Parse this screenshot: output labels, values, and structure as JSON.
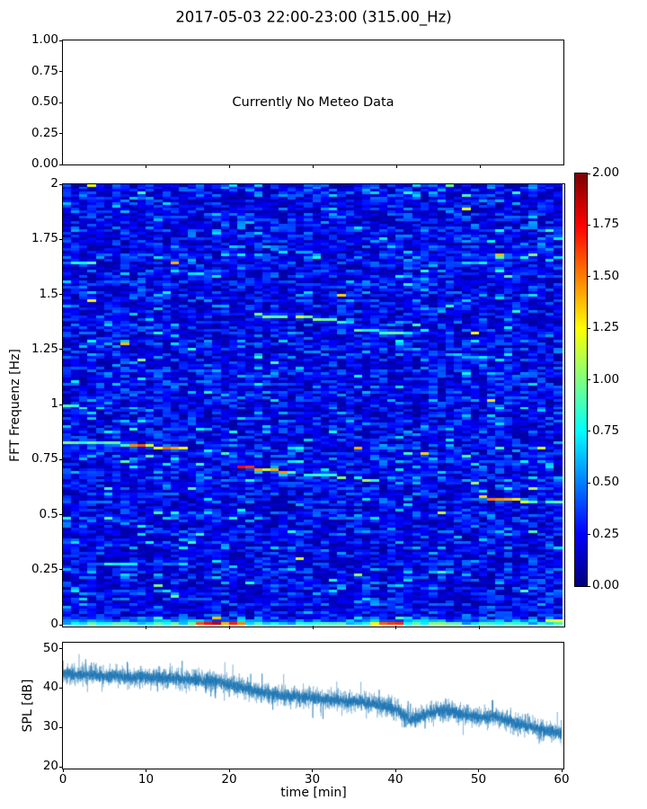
{
  "figure": {
    "title": "2017-05-03 22:00-23:00 (315.00_Hz)",
    "background": "#ffffff",
    "frame_color": "#000000"
  },
  "chart_data": [
    {
      "type": "blank",
      "panel": "meteo",
      "annotation": "Currently No Meteo Data",
      "ylim": [
        0,
        1
      ],
      "yticks": [
        1.0,
        0.75,
        0.5,
        0.25,
        0.0
      ],
      "ytick_labels": [
        "1.00",
        "0.75",
        "0.50",
        "0.25",
        "0.00"
      ],
      "xlim": [
        0,
        60
      ],
      "xticks": [
        0,
        10,
        20,
        30,
        40,
        50,
        60
      ],
      "grid": false
    },
    {
      "type": "heatmap",
      "panel": "spectrogram",
      "ylabel": "FFT Frequenz [Hz]",
      "ylim": [
        0,
        2
      ],
      "yticks": [
        2,
        1.75,
        1.5,
        1.25,
        1,
        0.75,
        0.5,
        0.25,
        0
      ],
      "ytick_labels": [
        "2",
        "1.75",
        "1.5",
        "1.25",
        "1",
        "0.75",
        "0.5",
        "0.25",
        "0"
      ],
      "xlim": [
        0,
        60
      ],
      "xticks": [
        0,
        10,
        20,
        30,
        40,
        50,
        60
      ],
      "colormap": "jet",
      "clim": [
        0,
        2
      ],
      "grid_cells": {
        "n_time": 60,
        "n_freq": 164
      },
      "noise_seed": 1234,
      "background_value_range": [
        0.05,
        0.5
      ],
      "tracks_format": [
        "t0_min",
        "t1_min",
        "f0_hz",
        "f1_hz",
        "value",
        "density"
      ],
      "tracks": [
        [
          0,
          8.5,
          0.83,
          0.815,
          0.95,
          0.8
        ],
        [
          8.5,
          15,
          0.81,
          0.795,
          1.45,
          1
        ],
        [
          15,
          19,
          0.795,
          0.78,
          0.8,
          0.6
        ],
        [
          21,
          23,
          0.712,
          0.708,
          1.9,
          1
        ],
        [
          23,
          27,
          0.708,
          0.69,
          1.4,
          1
        ],
        [
          27,
          40,
          0.69,
          0.645,
          0.95,
          0.85
        ],
        [
          40,
          44,
          0.645,
          0.63,
          0.7,
          0.45
        ],
        [
          50,
          56,
          0.578,
          0.557,
          1.35,
          1
        ],
        [
          56,
          60,
          0.557,
          0.548,
          0.85,
          0.7
        ],
        [
          23,
          33,
          1.405,
          1.385,
          1.05,
          0.9
        ],
        [
          31,
          35,
          1.375,
          1.37,
          0.75,
          0.6
        ],
        [
          35.5,
          40.5,
          1.335,
          1.325,
          0.9,
          0.85
        ],
        [
          46,
          53,
          1.225,
          1.2,
          0.72,
          0.65
        ],
        [
          0,
          3.5,
          1.645,
          1.635,
          0.9,
          0.8
        ],
        [
          0,
          6,
          1.6,
          1.59,
          0.7,
          0.5
        ],
        [
          13,
          20,
          1.6,
          1.575,
          0.85,
          0.7
        ],
        [
          26,
          31,
          1.69,
          1.68,
          0.7,
          0.6
        ],
        [
          52,
          60,
          1.67,
          1.655,
          0.8,
          0.7
        ],
        [
          0,
          5,
          0.99,
          0.985,
          0.8,
          0.6
        ],
        [
          36,
          40,
          1.755,
          1.75,
          0.65,
          0.4
        ],
        [
          53,
          58,
          1.8,
          1.79,
          0.6,
          0.4
        ],
        [
          15.8,
          21.8,
          0.012,
          0.012,
          1.55,
          1
        ],
        [
          17,
          18.5,
          0.008,
          0.008,
          1.85,
          1
        ],
        [
          37.5,
          41,
          0.012,
          0.012,
          1.5,
          1
        ],
        [
          44.5,
          47,
          0.012,
          0.012,
          1.1,
          1
        ],
        [
          57.5,
          60,
          0.025,
          0.02,
          1.2,
          0.9
        ],
        [
          5,
          8,
          0.012,
          0.012,
          0.9,
          0.9
        ]
      ],
      "colorbar": {
        "ticks": [
          2.0,
          1.75,
          1.5,
          1.25,
          1.0,
          0.75,
          0.5,
          0.25,
          0.0
        ],
        "tick_labels": [
          "2.00",
          "1.75",
          "1.50",
          "1.25",
          "1.00",
          "0.75",
          "0.50",
          "0.25",
          "0.00"
        ]
      }
    },
    {
      "type": "line",
      "panel": "spl",
      "ylabel": "SPL [dB]",
      "xlabel": "time [min]",
      "ylim": [
        20,
        51.5
      ],
      "yticks": [
        50,
        40,
        30,
        20
      ],
      "ytick_labels": [
        "50",
        "40",
        "30",
        "20"
      ],
      "xticks": [
        0,
        10,
        20,
        30,
        40,
        50,
        60
      ],
      "xtick_labels": [
        "0",
        "10",
        "20",
        "30",
        "40",
        "50",
        "60"
      ],
      "line_color": "#1f77b4",
      "x_minutes": [
        0,
        2,
        4,
        6,
        8,
        10,
        12,
        14,
        16,
        18,
        20,
        22,
        24,
        26,
        28,
        30,
        32,
        34,
        36,
        38,
        40,
        42,
        44,
        46,
        48,
        50,
        52,
        54,
        56,
        58,
        60
      ],
      "envelope_db": [
        43.8,
        43.2,
        43.3,
        43.0,
        42.8,
        42.8,
        42.5,
        42.3,
        42.0,
        41.8,
        40.8,
        39.8,
        38.8,
        38.2,
        37.8,
        37.5,
        37.0,
        36.6,
        36.4,
        35.8,
        34.5,
        31.8,
        33.8,
        34.3,
        33.3,
        32.5,
        32.8,
        31.3,
        30.3,
        29.3,
        28.3
      ],
      "noise_halfwidth_db": 4,
      "samples_per_min": 60,
      "noise_seed": 77
    }
  ]
}
